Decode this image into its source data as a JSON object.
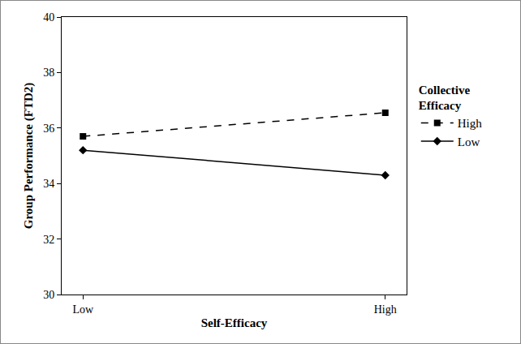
{
  "chart_data": {
    "type": "line",
    "x_label": "Self-Efficacy",
    "y_label": "Group Performance (FTD2)",
    "legend_title": "Collective Efficacy",
    "categories": [
      "Low",
      "High"
    ],
    "series": [
      {
        "name": "High",
        "color": "#000000",
        "marker": "square",
        "line_style": "dash",
        "values": [
          35.7,
          36.55
        ]
      },
      {
        "name": "Low",
        "color": "#000000",
        "marker": "diamond",
        "line_style": "solid",
        "values": [
          35.2,
          34.3
        ]
      }
    ],
    "ylim": [
      30,
      40
    ],
    "yticks": [
      30,
      32,
      34,
      36,
      38,
      40
    ],
    "grid": false,
    "legend": "right"
  }
}
